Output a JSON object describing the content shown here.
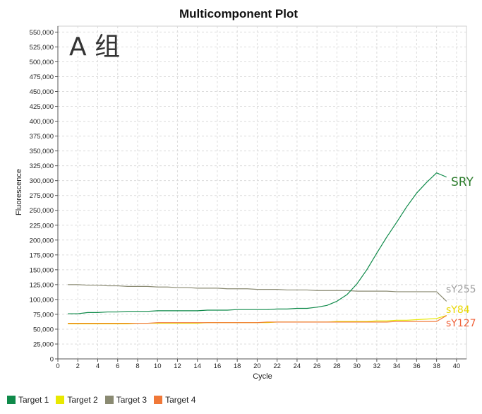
{
  "chart_data": {
    "type": "line",
    "title": "Multicomponent Plot",
    "xlabel": "Cycle",
    "ylabel": "Fluorescence",
    "xlim": [
      0,
      41
    ],
    "ylim": [
      0,
      560000
    ],
    "xticks": [
      0,
      2,
      4,
      6,
      8,
      10,
      12,
      14,
      16,
      18,
      20,
      22,
      24,
      26,
      28,
      30,
      32,
      34,
      36,
      38,
      40
    ],
    "yticks": [
      0,
      25000,
      50000,
      75000,
      100000,
      125000,
      150000,
      175000,
      200000,
      225000,
      250000,
      275000,
      300000,
      325000,
      350000,
      375000,
      400000,
      425000,
      450000,
      475000,
      500000,
      525000,
      550000
    ],
    "ytick_labels": [
      "0",
      "25,000",
      "50,000",
      "75,000",
      "100,000",
      "125,000",
      "150,000",
      "175,000",
      "200,000",
      "225,000",
      "250,000",
      "275,000",
      "300,000",
      "325,000",
      "350,000",
      "375,000",
      "400,000",
      "425,000",
      "450,000",
      "475,000",
      "500,000",
      "525,000",
      "550,000"
    ],
    "grid": true,
    "legend_position": "bottom-left",
    "x": [
      1,
      2,
      3,
      4,
      5,
      6,
      7,
      8,
      9,
      10,
      11,
      12,
      13,
      14,
      15,
      16,
      17,
      18,
      19,
      20,
      21,
      22,
      23,
      24,
      25,
      26,
      27,
      28,
      29,
      30,
      31,
      32,
      33,
      34,
      35,
      36,
      37,
      38,
      39
    ],
    "series": [
      {
        "name": "Target 1",
        "color": "#0f8a4a",
        "values": [
          76000,
          76000,
          78000,
          78000,
          79000,
          79000,
          80000,
          80000,
          80000,
          81000,
          81000,
          81000,
          81000,
          81000,
          82000,
          82000,
          82000,
          83000,
          83000,
          83000,
          83000,
          84000,
          84000,
          85000,
          85000,
          87000,
          90000,
          97000,
          108000,
          126000,
          150000,
          178000,
          205000,
          230000,
          256000,
          279000,
          297000,
          313000,
          306000
        ]
      },
      {
        "name": "Target 2",
        "color": "#e8e800",
        "values": [
          59000,
          59000,
          59000,
          59000,
          59000,
          59000,
          59000,
          60000,
          60000,
          60000,
          60000,
          60000,
          60000,
          60000,
          61000,
          61000,
          61000,
          61000,
          61000,
          61000,
          61000,
          62000,
          62000,
          62000,
          62000,
          62000,
          62000,
          63000,
          63000,
          63000,
          63000,
          64000,
          64000,
          65000,
          65000,
          66000,
          67000,
          68000,
          73000
        ]
      },
      {
        "name": "Target 3",
        "color": "#8a8a72",
        "values": [
          125000,
          125000,
          124000,
          124000,
          123000,
          123000,
          122000,
          122000,
          122000,
          121000,
          121000,
          120000,
          120000,
          119000,
          119000,
          119000,
          118000,
          118000,
          118000,
          117000,
          117000,
          117000,
          116000,
          116000,
          116000,
          115000,
          115000,
          115000,
          115000,
          114000,
          114000,
          114000,
          114000,
          113000,
          113000,
          113000,
          113000,
          113000,
          97000
        ]
      },
      {
        "name": "Target 4",
        "color": "#f07838",
        "values": [
          60000,
          60000,
          60000,
          60000,
          60000,
          60000,
          60000,
          60000,
          60000,
          61000,
          61000,
          61000,
          61000,
          61000,
          61000,
          61000,
          61000,
          61000,
          61000,
          61000,
          62000,
          62000,
          62000,
          62000,
          62000,
          62000,
          62000,
          62000,
          62000,
          62000,
          62000,
          62000,
          62000,
          63000,
          63000,
          63000,
          63000,
          63000,
          73000
        ]
      }
    ],
    "annotations": [
      {
        "text": "A 组",
        "color": "#333333",
        "at": "top-left"
      },
      {
        "text": "SRY",
        "color": "#2e7d2e",
        "series": "Target 1"
      },
      {
        "text": "sY255",
        "color": "#a0a0a0",
        "series": "Target 3"
      },
      {
        "text": "sY84",
        "color": "#e8d800",
        "series": "Target 2"
      },
      {
        "text": "sY127",
        "color": "#f06038",
        "series": "Target 4"
      }
    ]
  },
  "legend": {
    "items": [
      {
        "label": "Target 1",
        "color": "#0f8a4a"
      },
      {
        "label": "Target 2",
        "color": "#e8e800"
      },
      {
        "label": "Target 3",
        "color": "#8a8a72"
      },
      {
        "label": "Target 4",
        "color": "#f07838"
      }
    ]
  }
}
